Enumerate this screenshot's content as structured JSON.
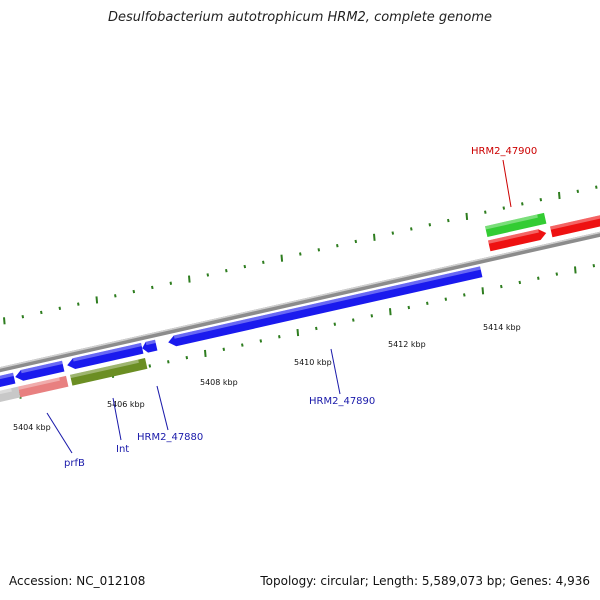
{
  "title": "Desulfobacterium autotrophicum HRM2, complete genome",
  "footer": {
    "accession": "Accession: NC_012108",
    "summary": "Topology: circular; Length: 5,589,073 bp; Genes: 4,936"
  },
  "colors": {
    "backbone": "#8c8c8c",
    "tick": "#2e7d1f",
    "cds_blue": "#1a1aee",
    "cds_olive": "#6b8e23",
    "cds_pink": "#e88080",
    "cds_gray": "#c8c8c8",
    "cds_green": "#33cc33",
    "cds_red": "#ee1111",
    "label_blue": "#1a1aaa",
    "label_red": "#cc0000"
  },
  "tick_labels": [
    {
      "id": "5404",
      "text": "5404 kbp"
    },
    {
      "id": "5406",
      "text": "5406 kbp"
    },
    {
      "id": "5408",
      "text": "5408 kbp"
    },
    {
      "id": "5410",
      "text": "5410 kbp"
    },
    {
      "id": "5412",
      "text": "5412 kbp"
    },
    {
      "id": "5414",
      "text": "5414 kbp"
    }
  ],
  "gene_labels": [
    {
      "id": "prfB",
      "text": "prfB",
      "color": "#1a1aaa"
    },
    {
      "id": "Int",
      "text": "Int",
      "color": "#1a1aaa"
    },
    {
      "id": "HRM2_47880",
      "text": "HRM2_47880",
      "color": "#1a1aaa"
    },
    {
      "id": "HRM2_47890",
      "text": "HRM2_47890",
      "color": "#1a1aaa"
    },
    {
      "id": "HRM2_47900",
      "text": "HRM2_47900",
      "color": "#cc0000"
    }
  ]
}
